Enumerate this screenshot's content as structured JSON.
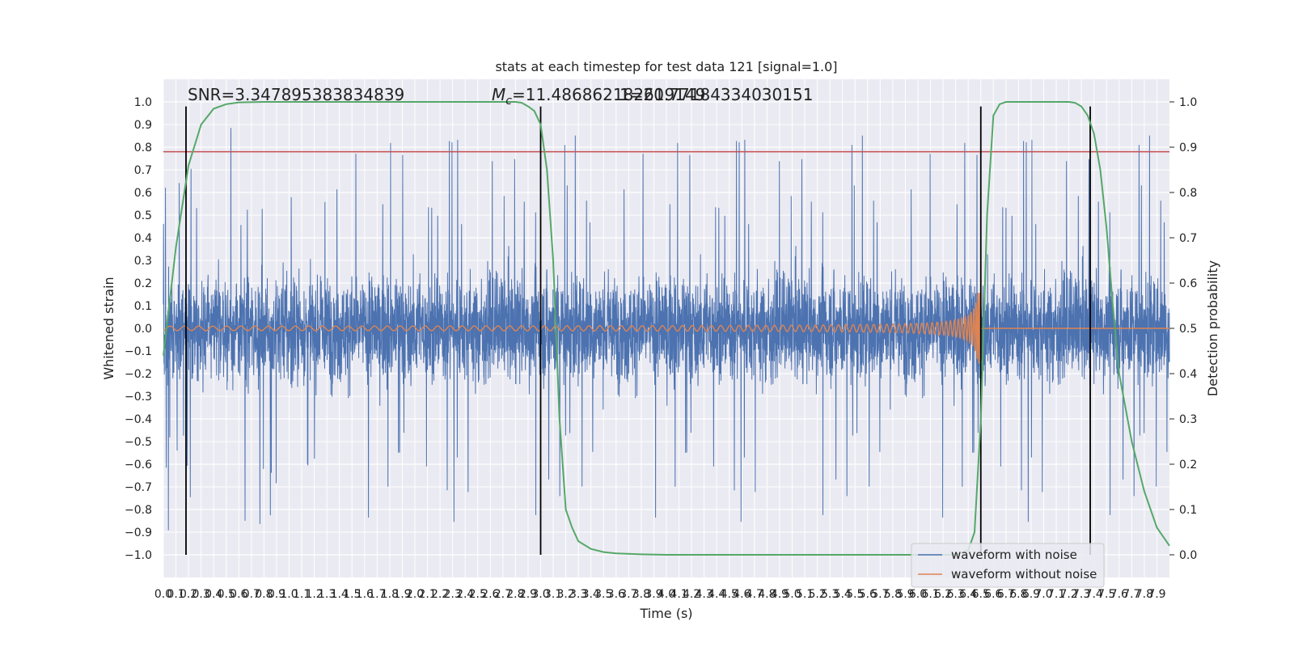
{
  "chart_data": {
    "type": "line",
    "title": "stats at each timestep for test data 121 [signal=1.0]",
    "xlabel": "Time (s)",
    "ylabel": "Whitened strain",
    "ylabel_right": "Detection probability",
    "xlim": [
      0.0,
      8.0
    ],
    "ylim": [
      -1.1,
      1.1
    ],
    "ylim_right": [
      -0.05,
      1.05
    ],
    "x_ticks": [
      0.0,
      0.1,
      0.2,
      0.3,
      0.4,
      0.5,
      0.6,
      0.7,
      0.8,
      0.9,
      1.0,
      1.1,
      1.2,
      1.3,
      1.4,
      1.5,
      1.6,
      1.7,
      1.8,
      1.9,
      2.0,
      2.1,
      2.2,
      2.3,
      2.4,
      2.5,
      2.6,
      2.7,
      2.8,
      2.9,
      3.0,
      3.1,
      3.2,
      3.3,
      3.4,
      3.5,
      3.6,
      3.7,
      3.8,
      3.9,
      4.0,
      4.1,
      4.2,
      4.3,
      4.4,
      4.5,
      4.6,
      4.7,
      4.8,
      4.9,
      5.0,
      5.1,
      5.2,
      5.3,
      5.4,
      5.5,
      5.6,
      5.7,
      5.8,
      5.9,
      6.0,
      6.1,
      6.2,
      6.3,
      6.4,
      6.5,
      6.6,
      6.7,
      6.8,
      6.9,
      7.0,
      7.1,
      7.2,
      7.3,
      7.4,
      7.5,
      7.6,
      7.7,
      7.8,
      7.9
    ],
    "y_ticks": [
      -1.0,
      -0.9,
      -0.8,
      -0.7,
      -0.6,
      -0.5,
      -0.4,
      -0.3,
      -0.2,
      -0.1,
      0.0,
      0.1,
      0.2,
      0.3,
      0.4,
      0.5,
      0.6,
      0.7,
      0.8,
      0.9,
      1.0
    ],
    "y_ticks_right": [
      0.0,
      0.1,
      0.2,
      0.3,
      0.4,
      0.5,
      0.6,
      0.7,
      0.8,
      0.9,
      1.0
    ],
    "threshold": 0.78,
    "vertical_lines": {
      "x": [
        0.18,
        3.0,
        6.5,
        7.37
      ],
      "y_top": 0.98,
      "y_bottom": -1.0
    },
    "detection_probability": {
      "x": [
        0.0,
        0.1,
        0.2,
        0.3,
        0.4,
        0.5,
        0.6,
        0.8,
        1.0,
        2.0,
        2.8,
        2.85,
        2.9,
        2.95,
        3.0,
        3.05,
        3.1,
        3.15,
        3.2,
        3.25,
        3.3,
        3.4,
        3.5,
        3.6,
        3.8,
        4.0,
        5.0,
        6.0,
        6.3,
        6.4,
        6.45,
        6.5,
        6.55,
        6.6,
        6.65,
        6.7,
        6.8,
        7.0,
        7.2,
        7.25,
        7.3,
        7.35,
        7.4,
        7.45,
        7.5,
        7.55,
        7.6,
        7.7,
        7.8,
        7.9,
        8.0
      ],
      "y": [
        0.44,
        0.68,
        0.86,
        0.95,
        0.985,
        0.995,
        0.999,
        1.0,
        1.0,
        1.0,
        1.0,
        0.998,
        0.99,
        0.98,
        0.95,
        0.85,
        0.65,
        0.3,
        0.1,
        0.06,
        0.03,
        0.013,
        0.006,
        0.003,
        0.001,
        0.0,
        0.0,
        0.0,
        0.0,
        0.01,
        0.05,
        0.3,
        0.75,
        0.97,
        0.995,
        1.0,
        1.0,
        1.0,
        1.0,
        0.998,
        0.99,
        0.97,
        0.93,
        0.85,
        0.72,
        0.55,
        0.4,
        0.25,
        0.14,
        0.06,
        0.02
      ]
    },
    "annotations": [
      {
        "text": "SNR=3.347895383834839",
        "x": 0.19,
        "y": 1.02
      },
      {
        "text": "=11.486862182619149",
        "x": 2.8,
        "y": 1.02,
        "math_prefix": "M",
        "math_sub": "c"
      },
      {
        "text": "1=20.77184334030151",
        "x": 3.6,
        "y": 1.02
      }
    ],
    "series": [
      {
        "name": "waveform with noise",
        "color": "#4c72b0",
        "noise_spikes_approx": "dense random strain roughly within [-0.5, 0.55] with occasional spikes to about [-1.0, 0.97]"
      },
      {
        "name": "waveform without noise",
        "color": "#dd8452",
        "chirp_approx": "small oscillation of amplitude ~0.01 growing into a chirp of amplitude ~0.15 peaking near t=6.5 s, then flat at 0"
      },
      {
        "name": "detection probability",
        "color": "#55a868"
      }
    ],
    "legend": {
      "position": "lower-right",
      "entries": [
        "waveform with noise",
        "waveform without noise"
      ]
    },
    "colors": {
      "background": "#eaeaf2",
      "grid": "#ffffff",
      "threshold": "#c44e52",
      "vline": "#000000"
    },
    "grid": true
  }
}
